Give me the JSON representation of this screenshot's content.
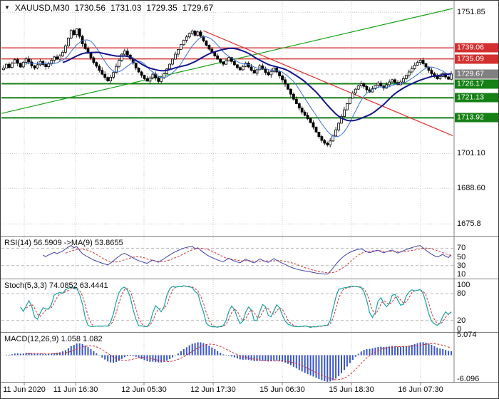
{
  "header": {
    "dropdown_icon": "▼",
    "symbol": "XAUUSD,M30",
    "open": "1730.56",
    "high": "1731.03",
    "low": "1729.35",
    "close": "1729.67"
  },
  "chart_data": {
    "type": "candlestick",
    "symbol": "XAUUSD",
    "timeframe": "M30",
    "title": "XAUUSD,M30 1730.56 1731.03 1729.35 1729.67",
    "x_labels": [
      "11 Jun 2020",
      "11 Jun 16:30",
      "12 Jun 05:30",
      "12 Jun 17:30",
      "15 Jun 06:30",
      "15 Jun 18:30",
      "16 Jun 07:30"
    ],
    "y_axis": {
      "range": [
        1671.5,
        1755.5
      ],
      "ticks": [
        {
          "label": "1751.85",
          "value": 1751.85
        },
        {
          "label": "1701.10",
          "value": 1701.1
        },
        {
          "label": "1688.60",
          "value": 1688.6
        },
        {
          "label": "1675.8",
          "value": 1675.8
        }
      ],
      "levels": [
        {
          "label": "1739.06",
          "value": 1739.06,
          "color": "#d32f2f",
          "type": "resistance"
        },
        {
          "label": "1735.09",
          "value": 1735.09,
          "color": "#d32f2f",
          "type": "resistance"
        },
        {
          "label": "1729.67",
          "value": 1729.67,
          "color": "#808080",
          "type": "current-price"
        },
        {
          "label": "1726.17",
          "value": 1726.17,
          "color": "#168016",
          "type": "support"
        },
        {
          "label": "1721.13",
          "value": 1721.13,
          "color": "#168016",
          "type": "support"
        },
        {
          "label": "1713.92",
          "value": 1713.92,
          "color": "#168016",
          "type": "support"
        }
      ]
    },
    "closes": [
      1731.8,
      1733.2,
      1732.0,
      1733.6,
      1734.8,
      1733.5,
      1732.2,
      1733.9,
      1735.1,
      1734.0,
      1732.6,
      1731.8,
      1733.0,
      1734.2,
      1733.1,
      1732.3,
      1733.5,
      1734.6,
      1735.8,
      1735.0,
      1736.2,
      1737.5,
      1739.8,
      1742.6,
      1745.3,
      1743.8,
      1745.9,
      1743.2,
      1740.5,
      1738.8,
      1737.2,
      1735.5,
      1733.8,
      1732.5,
      1731.0,
      1729.6,
      1728.4,
      1727.2,
      1728.5,
      1730.2,
      1732.4,
      1734.6,
      1736.8,
      1737.9,
      1736.5,
      1735.2,
      1733.6,
      1731.8,
      1730.4,
      1729.2,
      1728.0,
      1727.1,
      1728.3,
      1729.6,
      1728.2,
      1727.0,
      1728.4,
      1729.8,
      1731.5,
      1733.2,
      1735.0,
      1736.8,
      1738.5,
      1740.2,
      1741.8,
      1743.0,
      1744.2,
      1745.1,
      1743.6,
      1744.8,
      1743.2,
      1741.6,
      1740.0,
      1738.6,
      1737.4,
      1736.2,
      1735.0,
      1734.0,
      1733.2,
      1734.4,
      1735.6,
      1734.2,
      1733.0,
      1732.0,
      1731.2,
      1732.4,
      1733.6,
      1732.2,
      1731.0,
      1730.0,
      1731.2,
      1732.6,
      1731.4,
      1730.2,
      1729.4,
      1730.6,
      1731.8,
      1730.4,
      1729.0,
      1727.6,
      1726.0,
      1724.2,
      1722.4,
      1720.6,
      1719.0,
      1717.4,
      1716.0,
      1714.8,
      1713.6,
      1712.2,
      1710.6,
      1708.8,
      1707.2,
      1705.8,
      1704.8,
      1704.2,
      1705.6,
      1707.4,
      1709.6,
      1712.0,
      1714.4,
      1716.8,
      1719.0,
      1721.0,
      1722.8,
      1724.2,
      1725.4,
      1726.2,
      1725.2,
      1724.0,
      1723.2,
      1724.4,
      1725.6,
      1726.4,
      1725.4,
      1724.6,
      1725.8,
      1726.8,
      1727.6,
      1726.6,
      1725.8,
      1726.8,
      1728.0,
      1729.2,
      1730.4,
      1731.6,
      1732.8,
      1733.8,
      1734.6,
      1733.4,
      1732.2,
      1731.0,
      1729.8,
      1728.8,
      1728.0,
      1728.8,
      1729.8,
      1728.6,
      1727.8,
      1729.67
    ],
    "moving_averages": [
      {
        "period": 9,
        "color": "#3b6fd4",
        "width": 1
      },
      {
        "period": 22,
        "color": "#14148c",
        "width": 2
      }
    ],
    "trend_lines": [
      {
        "name": "descending-red-trendline",
        "color": "#e03030",
        "from_index": 71,
        "from_price": 1745.2,
        "to_index": 161,
        "to_price": 1707.5
      },
      {
        "name": "ascending-green-trendline",
        "color": "#18a018",
        "from_index": -1,
        "from_price": 1715.5,
        "to_index": 161,
        "to_price": 1753.2
      }
    ],
    "indicators": [
      {
        "id": "rsi",
        "label": "RSI(14) 56.5909  ->MA(9) 53.8655",
        "main_period": 14,
        "signal_period": 9,
        "ticks": [
          70,
          50,
          30,
          10
        ],
        "levels": [
          70,
          30
        ],
        "range": [
          0,
          97
        ],
        "line_color": "#4040aa",
        "signal_color": "#d03030"
      },
      {
        "id": "stoch",
        "label": "Stoch(5,3,3) 74.0852 63.4441",
        "k_period": 5,
        "slowing": 3,
        "d_period": 3,
        "ticks": [
          100,
          80,
          20,
          0
        ],
        "levels": [
          80,
          20
        ],
        "range": [
          -6,
          112
        ],
        "line_color": "#17a2a2",
        "signal_color": "#d03030"
      },
      {
        "id": "macd",
        "label": "MACD(12,26,9) 1.058 1.082",
        "fast": 12,
        "slow": 26,
        "signal": 9,
        "ticks": [
          {
            "label": "5.074",
            "value": 5.074
          },
          {
            "label": "-6.096",
            "value": -6.096
          }
        ],
        "range": [
          -6.8,
          5.7
        ],
        "hist_color": "#3a55c8",
        "signal_color": "#d03030"
      }
    ]
  },
  "colors": {
    "background": "#ffffff",
    "grid": "#c9c9c9",
    "separator": "#808080",
    "bull_candle": "#ffffff",
    "bear_candle": "#000000",
    "candle_outline": "#000000",
    "current_price_badge": "#808080",
    "resistance": "#d32f2f",
    "support": "#168016"
  }
}
